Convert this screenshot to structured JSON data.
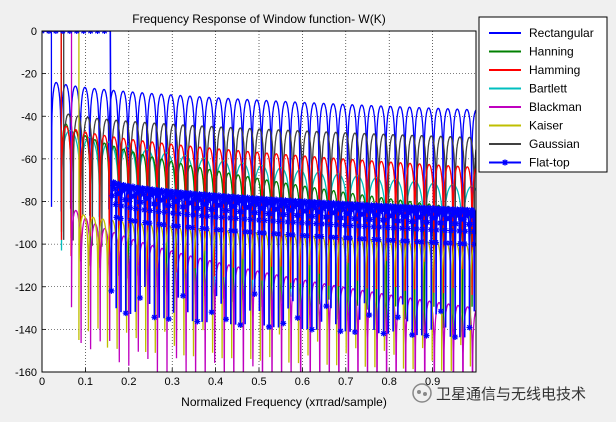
{
  "chart_data": {
    "type": "line",
    "title": "Frequency Response of Window function- W(K)",
    "xlabel": "Normalized Frequency (xπrad/sample)",
    "ylabel": "",
    "xlim": [
      0,
      1
    ],
    "ylim": [
      -160,
      0
    ],
    "xticks": [
      "0",
      "0.1",
      "0.2",
      "0.3",
      "0.4",
      "0.5",
      "0.6",
      "0.7",
      "0.8",
      "0.9"
    ],
    "yticks": [
      "0",
      "-20",
      "-40",
      "-60",
      "-80",
      "-100",
      "-120",
      "-140",
      "-160"
    ],
    "grid": true,
    "legend": "outside-top-right",
    "series": [
      {
        "name": "Rectangular",
        "color": "#0000ff",
        "mainlobe_end": 0.022,
        "lobe_spacing": 0.022,
        "first_sidelobe": -23,
        "last_sidelobe": -37,
        "marker": "none"
      },
      {
        "name": "Hanning",
        "color": "#008000",
        "mainlobe_end": 0.045,
        "lobe_spacing": 0.022,
        "first_sidelobe": -40,
        "last_sidelobe": -84,
        "marker": "none"
      },
      {
        "name": "Hamming",
        "color": "#ff0000",
        "mainlobe_end": 0.045,
        "lobe_spacing": 0.022,
        "first_sidelobe": -43,
        "last_sidelobe": -64,
        "marker": "none"
      },
      {
        "name": "Bartlett",
        "color": "#00bfbf",
        "mainlobe_end": 0.045,
        "lobe_spacing": 0.044,
        "first_sidelobe": -43,
        "last_sidelobe": -73,
        "marker": "none"
      },
      {
        "name": "Blackman",
        "color": "#bf00bf",
        "mainlobe_end": 0.068,
        "lobe_spacing": 0.022,
        "first_sidelobe": -80,
        "last_sidelobe": -130,
        "marker": "none"
      },
      {
        "name": "Kaiser",
        "color": "#bfbf00",
        "mainlobe_end": 0.085,
        "lobe_spacing": 0.022,
        "first_sidelobe": -85,
        "last_sidelobe": -100,
        "marker": "none"
      },
      {
        "name": "Gaussian",
        "color": "#404040",
        "mainlobe_end": 0.05,
        "lobe_spacing": 0.022,
        "first_sidelobe": -38,
        "last_sidelobe": -50,
        "marker": "none"
      },
      {
        "name": "Flat-top",
        "color": "#0000ff",
        "mainlobe_end": 0.16,
        "lobe_spacing": 0.011,
        "first_sidelobe": -70,
        "last_sidelobe": -84,
        "marker": "star"
      }
    ]
  },
  "watermark": {
    "text": "卫星通信与无线电技术"
  }
}
